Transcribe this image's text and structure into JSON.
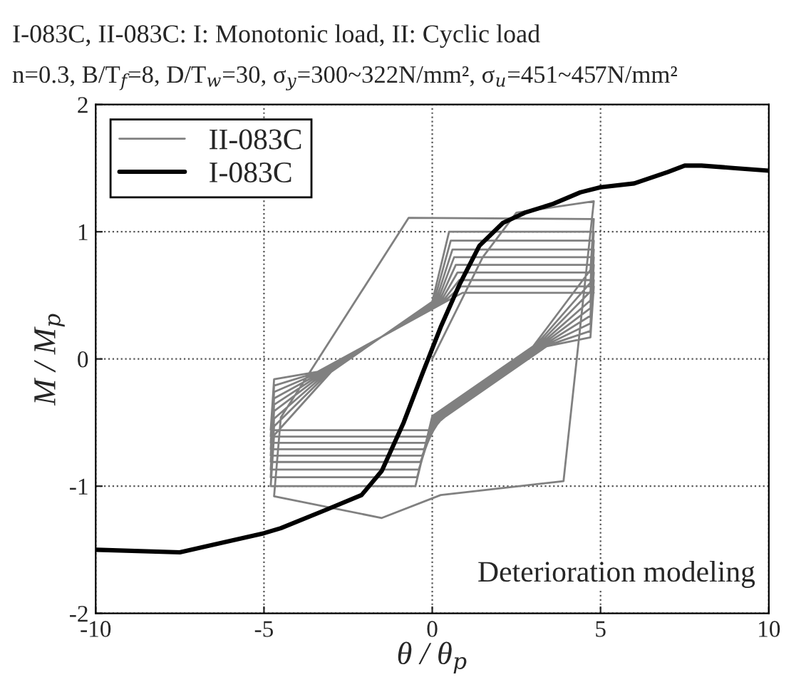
{
  "chart_data": {
    "type": "line",
    "title": "I-083C, II-083C: I: Monotonic load, II: Cyclic load",
    "subtitle": "n=0.3, B/T$_{f}$=8, D/T$_{w}$=30, σ$_{y}$=300~322N/mm², σ$_{u}$=451~457N/mm²",
    "xlabel": "θ / θ$_{p}$",
    "ylabel": "M / M$_{p}$",
    "annotations": [
      "Deterioration modeling"
    ],
    "xlim": [
      -10,
      10
    ],
    "xticks": [
      -10,
      -5,
      0,
      5,
      10
    ],
    "ylim": [
      -2,
      2
    ],
    "yticks": [
      -2,
      -1,
      0,
      1,
      2
    ],
    "grid": true,
    "legend": "top left",
    "line_style": "solid",
    "marker": "none",
    "series": [
      {
        "name": "II-083C",
        "color": "#808080",
        "x": [
          0,
          1.5,
          2.5,
          4.8,
          3.9,
          0.25,
          -1.5,
          -4.7,
          -4.5,
          -0.7,
          4.8,
          4.7,
          3.0,
          0.0,
          -0.5,
          -4.8,
          -4.7,
          -3.0,
          0.0,
          0.5,
          4.8,
          4.7,
          3.05,
          0.05,
          -0.45,
          -4.8,
          -4.7,
          -3.05,
          0.05,
          0.55,
          4.8,
          4.7,
          3.1,
          0.1,
          -0.4,
          -4.8,
          -4.7,
          -3.1,
          0.1,
          0.6,
          4.8,
          4.7,
          3.15,
          0.15,
          -0.35,
          -4.8,
          -4.7,
          -3.15,
          0.15,
          0.65,
          4.8,
          4.7,
          3.2,
          0.2,
          -0.3,
          -4.8,
          -4.7,
          -3.2,
          0.2,
          0.7,
          4.8,
          4.7,
          3.25,
          0.25,
          -0.25,
          -4.8,
          -4.7,
          -3.25,
          0.25,
          0.75,
          4.8,
          4.7,
          3.3,
          0.3,
          -0.2,
          -4.8,
          -4.7,
          -3.3,
          0.3,
          0.8,
          4.8,
          4.7,
          3.35,
          0.35,
          -0.15,
          -4.8,
          -4.7,
          -3.35,
          0.35,
          0.85,
          4.8,
          4.7,
          3.4,
          0.4,
          -0.1,
          -4.8,
          -4.7,
          -3.4,
          0.4,
          0.9,
          4.8
        ],
        "values": [
          0,
          0.8,
          1.15,
          1.24,
          -0.96,
          -1.07,
          -1.25,
          -1.08,
          -0.46,
          1.11,
          1.1,
          0.7,
          0.1,
          -0.45,
          -1.0,
          -1.0,
          -0.6,
          -0.1,
          0.45,
          1.0,
          1.0,
          0.6,
          0.1,
          -0.45,
          -0.93,
          -0.93,
          -0.53,
          -0.1,
          0.45,
          0.93,
          0.93,
          0.53,
          0.1,
          -0.45,
          -0.87,
          -0.87,
          -0.47,
          -0.1,
          0.45,
          0.86,
          0.86,
          0.46,
          0.1,
          -0.45,
          -0.81,
          -0.81,
          -0.41,
          -0.1,
          0.45,
          0.8,
          0.8,
          0.4,
          0.1,
          -0.45,
          -0.76,
          -0.76,
          -0.36,
          -0.1,
          0.45,
          0.74,
          0.74,
          0.34,
          0.1,
          -0.45,
          -0.71,
          -0.71,
          -0.31,
          -0.1,
          0.45,
          0.68,
          0.68,
          0.28,
          0.1,
          -0.45,
          -0.66,
          -0.66,
          -0.26,
          -0.1,
          0.45,
          0.62,
          0.62,
          0.22,
          0.1,
          -0.45,
          -0.61,
          -0.61,
          -0.21,
          -0.1,
          0.45,
          0.57,
          0.57,
          0.17,
          0.1,
          -0.45,
          -0.56,
          -0.56,
          -0.16,
          -0.1,
          0.45,
          0.52,
          0.52
        ]
      },
      {
        "name": "I-083C",
        "color": "#000000",
        "x": [
          -10,
          -7.5,
          -5,
          -4.5,
          -3.1,
          -2.1,
          -1.5,
          -0.85,
          -0.3,
          0.25,
          0.8,
          1.4,
          2.1,
          2.75,
          3.6,
          4.4,
          5,
          6,
          7,
          7.5,
          8,
          9,
          10
        ],
        "values": [
          -1.5,
          -1.52,
          -1.37,
          -1.33,
          -1.18,
          -1.07,
          -0.88,
          -0.5,
          -0.12,
          0.25,
          0.58,
          0.89,
          1.07,
          1.15,
          1.22,
          1.31,
          1.35,
          1.38,
          1.47,
          1.52,
          1.52,
          1.5,
          1.48
        ]
      }
    ]
  }
}
